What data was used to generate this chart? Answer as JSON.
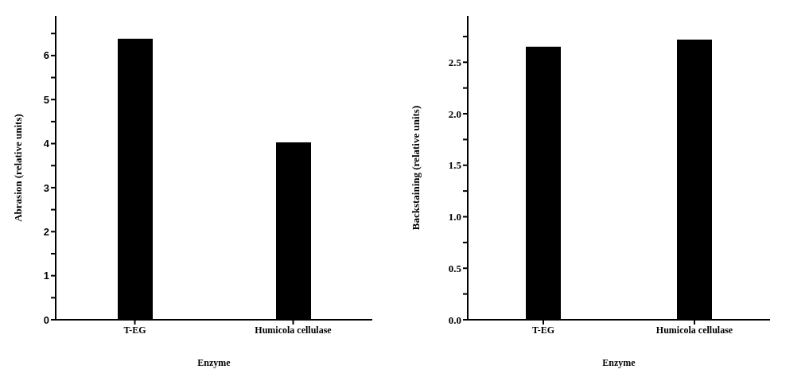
{
  "chart_data": [
    {
      "type": "bar",
      "categories": [
        "T-EG",
        "Humicola cellulase"
      ],
      "values": [
        6.38,
        4.03
      ],
      "color": "#000000",
      "xlabel": "Enzyme",
      "ylabel": "Abrasion (relative units)",
      "ylim": [
        0,
        6.9
      ],
      "yticks": [
        0,
        {
          "value": 0.5,
          "label": null
        },
        1,
        {
          "value": 1.5,
          "label": null
        },
        2,
        {
          "value": 2.5,
          "label": null
        },
        3,
        {
          "value": 3.5,
          "label": null
        },
        4,
        {
          "value": 4.5,
          "label": null
        },
        5,
        {
          "value": 5.5,
          "label": null
        },
        6,
        {
          "value": 6.5,
          "label": null
        }
      ]
    },
    {
      "type": "bar",
      "categories": [
        "T-EG",
        "Humicola cellulase"
      ],
      "values": [
        2.65,
        2.72
      ],
      "color": "#000000",
      "xlabel": "Enzyme",
      "ylabel": "Backstaining (relative units)",
      "ylim": [
        0,
        2.95
      ],
      "yticks": [
        "0.0",
        {
          "value": 0.25,
          "label": null
        },
        {
          "value": 0.5,
          "label": "0.5"
        },
        {
          "value": 0.75,
          "label": null
        },
        {
          "value": 1,
          "label": "1.0"
        },
        {
          "value": 1.25,
          "label": null
        },
        {
          "value": 1.5,
          "label": "1.5"
        },
        {
          "value": 1.75,
          "label": null
        },
        {
          "value": 2,
          "label": "2.0"
        },
        {
          "value": 2.25,
          "label": null
        },
        {
          "value": 2.5,
          "label": "2.5"
        },
        {
          "value": 2.75,
          "label": null
        }
      ]
    }
  ]
}
